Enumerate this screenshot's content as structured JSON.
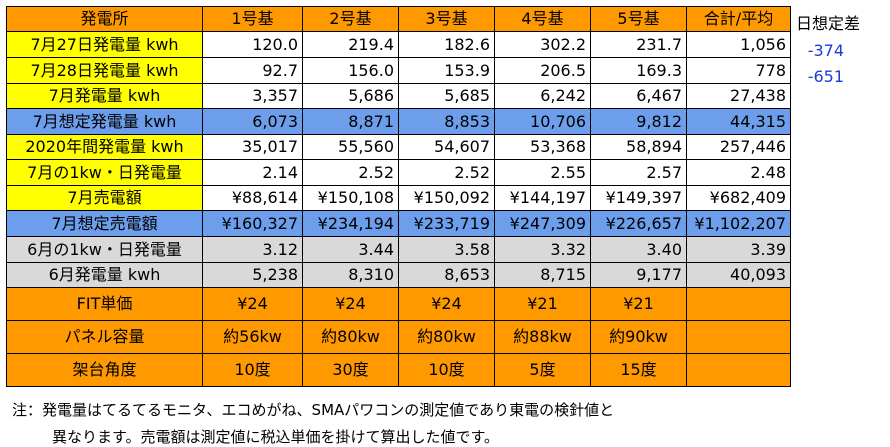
{
  "header": [
    "発電所",
    "1号基",
    "2号基",
    "3号基",
    "4号基",
    "5号基",
    "合計/平均"
  ],
  "rows": [
    {
      "style": "yellow",
      "label": "7月27日発電量 kwh",
      "values": [
        "120.0",
        "219.4",
        "182.6",
        "302.2",
        "231.7",
        "1,056"
      ]
    },
    {
      "style": "yellow",
      "label": "7月28日発電量 kwh",
      "values": [
        "92.7",
        "156.0",
        "153.9",
        "206.5",
        "169.3",
        "778"
      ]
    },
    {
      "style": "yellow",
      "label": "7月発電量 kwh",
      "values": [
        "3,357",
        "5,686",
        "5,685",
        "6,242",
        "6,467",
        "27,438"
      ]
    },
    {
      "style": "blue",
      "label": "7月想定発電量 kwh",
      "values": [
        "6,073",
        "8,871",
        "8,853",
        "10,706",
        "9,812",
        "44,315"
      ]
    },
    {
      "style": "yellow",
      "label": "2020年間発電量 kwh",
      "values": [
        "35,017",
        "55,560",
        "54,607",
        "53,368",
        "58,894",
        "257,446"
      ]
    },
    {
      "style": "yellow",
      "label": "7月の1kw・日発電量",
      "values": [
        "2.14",
        "2.52",
        "2.52",
        "2.55",
        "2.57",
        "2.48"
      ]
    },
    {
      "style": "yellow",
      "label": "7月売電額",
      "values": [
        "¥88,614",
        "¥150,108",
        "¥150,092",
        "¥144,197",
        "¥149,397",
        "¥682,409"
      ]
    },
    {
      "style": "blue",
      "label": "7月想定売電額",
      "values": [
        "¥160,327",
        "¥234,194",
        "¥233,719",
        "¥247,309",
        "¥226,657",
        "¥1,102,207"
      ]
    },
    {
      "style": "gray",
      "label": "6月の1kw・日発電量",
      "values": [
        "3.12",
        "3.44",
        "3.58",
        "3.32",
        "3.40",
        "3.39"
      ]
    },
    {
      "style": "gray",
      "label": "6月発電量 kwh",
      "values": [
        "5,238",
        "8,310",
        "8,653",
        "8,715",
        "9,177",
        "40,093"
      ]
    },
    {
      "style": "orange",
      "label": "FIT単価",
      "values": [
        "¥24",
        "¥24",
        "¥24",
        "¥21",
        "¥21",
        ""
      ]
    },
    {
      "style": "orange",
      "label": "パネル容量",
      "values": [
        "約56kw",
        "約80kw",
        "約80kw",
        "約88kw",
        "約90kw",
        ""
      ]
    },
    {
      "style": "orange",
      "label": "架台角度",
      "values": [
        "10度",
        "30度",
        "10度",
        "5度",
        "15度",
        ""
      ]
    }
  ],
  "side": {
    "title": "日想定差",
    "values": [
      "-374",
      "-651"
    ]
  },
  "note": {
    "line1": "注：発電量はてるてるモニタ、エコめがね、SMAパワコンの測定値であり東電の検針値と",
    "line2": "異なります。売電額は測定値に税込単価を掛けて算出した値です。"
  }
}
